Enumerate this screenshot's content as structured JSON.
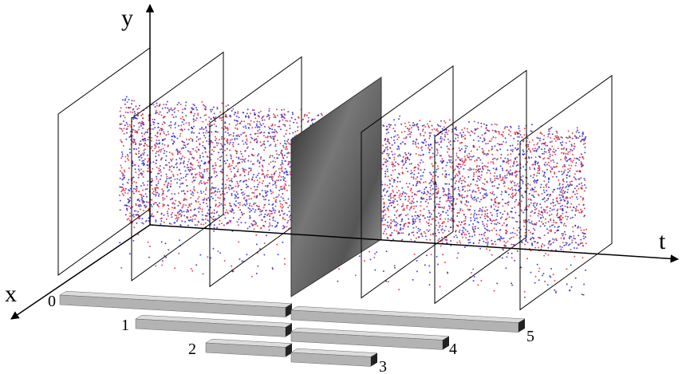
{
  "axes": {
    "y": "y",
    "t": "t",
    "x": "x"
  },
  "bins": {
    "left": [
      "0",
      "1",
      "2"
    ],
    "right": [
      "3",
      "4",
      "5"
    ]
  }
}
